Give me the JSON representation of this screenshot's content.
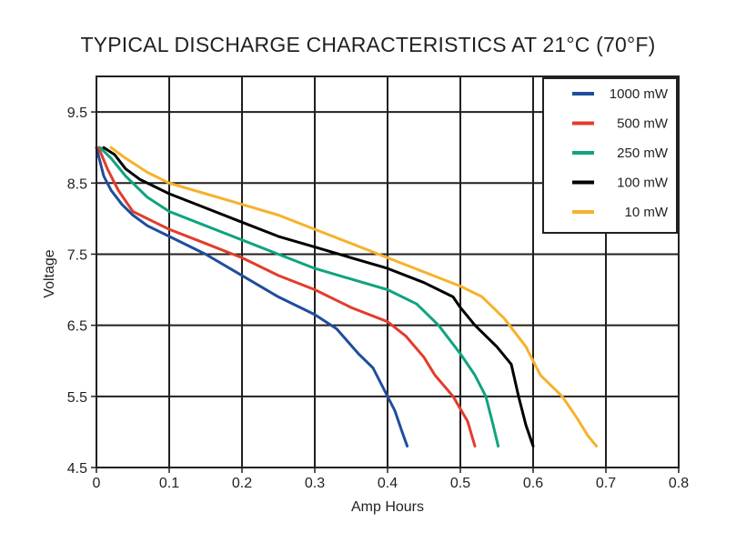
{
  "chart_data": {
    "type": "line",
    "title": "TYPICAL DISCHARGE CHARACTERISTICS AT 21°C (70°F)",
    "xlabel": "Amp Hours",
    "ylabel": "Voltage",
    "xlim": [
      0,
      0.8
    ],
    "ylim": [
      4.5,
      10
    ],
    "x_ticks": [
      0,
      0.1,
      0.2,
      0.3,
      0.4,
      0.5,
      0.6,
      0.7,
      0.8
    ],
    "x_tick_labels": [
      "0",
      "0.1",
      "0.2",
      "0.3",
      "0.4",
      "0.5",
      "0.6",
      "0.7",
      "0.8"
    ],
    "y_ticks": [
      4.5,
      5.5,
      6.5,
      7.5,
      8.5,
      9.5
    ],
    "y_tick_labels": [
      "4.5",
      "5.5",
      "6.5",
      "7.5",
      "8.5",
      "9.5"
    ],
    "grid": true,
    "legend_position": "top-right",
    "series": [
      {
        "name": "1000 mW",
        "color": "#1f4e9c",
        "points": [
          [
            0,
            9
          ],
          [
            0.01,
            8.6
          ],
          [
            0.02,
            8.4
          ],
          [
            0.035,
            8.2
          ],
          [
            0.05,
            8.05
          ],
          [
            0.07,
            7.9
          ],
          [
            0.1,
            7.75
          ],
          [
            0.15,
            7.5
          ],
          [
            0.2,
            7.2
          ],
          [
            0.25,
            6.9
          ],
          [
            0.3,
            6.65
          ],
          [
            0.33,
            6.45
          ],
          [
            0.36,
            6.1
          ],
          [
            0.38,
            5.9
          ],
          [
            0.395,
            5.6
          ],
          [
            0.41,
            5.3
          ],
          [
            0.42,
            5.0
          ],
          [
            0.427,
            4.8
          ]
        ]
      },
      {
        "name": "500 mW",
        "color": "#e23c2c",
        "points": [
          [
            0.003,
            9
          ],
          [
            0.015,
            8.7
          ],
          [
            0.03,
            8.4
          ],
          [
            0.05,
            8.1
          ],
          [
            0.08,
            7.95
          ],
          [
            0.1,
            7.85
          ],
          [
            0.15,
            7.65
          ],
          [
            0.2,
            7.45
          ],
          [
            0.25,
            7.2
          ],
          [
            0.3,
            7.0
          ],
          [
            0.35,
            6.75
          ],
          [
            0.4,
            6.55
          ],
          [
            0.425,
            6.35
          ],
          [
            0.45,
            6.05
          ],
          [
            0.465,
            5.8
          ],
          [
            0.49,
            5.5
          ],
          [
            0.51,
            5.15
          ],
          [
            0.52,
            4.8
          ]
        ]
      },
      {
        "name": "250 mW",
        "color": "#10a37f",
        "points": [
          [
            0.005,
            9
          ],
          [
            0.02,
            8.85
          ],
          [
            0.04,
            8.6
          ],
          [
            0.07,
            8.3
          ],
          [
            0.1,
            8.1
          ],
          [
            0.15,
            7.9
          ],
          [
            0.2,
            7.7
          ],
          [
            0.25,
            7.5
          ],
          [
            0.3,
            7.3
          ],
          [
            0.35,
            7.15
          ],
          [
            0.4,
            7.0
          ],
          [
            0.44,
            6.8
          ],
          [
            0.47,
            6.5
          ],
          [
            0.5,
            6.1
          ],
          [
            0.52,
            5.8
          ],
          [
            0.535,
            5.5
          ],
          [
            0.545,
            5.1
          ],
          [
            0.552,
            4.8
          ]
        ]
      },
      {
        "name": "100 mW",
        "color": "#000000",
        "points": [
          [
            0.01,
            9
          ],
          [
            0.025,
            8.9
          ],
          [
            0.04,
            8.7
          ],
          [
            0.06,
            8.55
          ],
          [
            0.1,
            8.35
          ],
          [
            0.15,
            8.15
          ],
          [
            0.2,
            7.95
          ],
          [
            0.25,
            7.75
          ],
          [
            0.3,
            7.6
          ],
          [
            0.35,
            7.45
          ],
          [
            0.4,
            7.3
          ],
          [
            0.45,
            7.1
          ],
          [
            0.49,
            6.9
          ],
          [
            0.5,
            6.75
          ],
          [
            0.52,
            6.5
          ],
          [
            0.55,
            6.2
          ],
          [
            0.57,
            5.95
          ],
          [
            0.58,
            5.5
          ],
          [
            0.59,
            5.1
          ],
          [
            0.6,
            4.8
          ]
        ]
      },
      {
        "name": "10 mW",
        "color": "#f7b12b",
        "points": [
          [
            0.02,
            9
          ],
          [
            0.04,
            8.85
          ],
          [
            0.07,
            8.65
          ],
          [
            0.1,
            8.5
          ],
          [
            0.15,
            8.35
          ],
          [
            0.2,
            8.2
          ],
          [
            0.25,
            8.05
          ],
          [
            0.3,
            7.85
          ],
          [
            0.35,
            7.65
          ],
          [
            0.4,
            7.45
          ],
          [
            0.45,
            7.25
          ],
          [
            0.5,
            7.05
          ],
          [
            0.53,
            6.9
          ],
          [
            0.56,
            6.6
          ],
          [
            0.59,
            6.2
          ],
          [
            0.61,
            5.8
          ],
          [
            0.64,
            5.5
          ],
          [
            0.66,
            5.2
          ],
          [
            0.675,
            4.95
          ],
          [
            0.687,
            4.8
          ]
        ]
      }
    ]
  }
}
